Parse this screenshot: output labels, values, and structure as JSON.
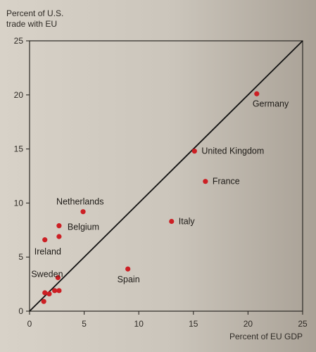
{
  "chart_data": {
    "type": "scatter",
    "title": "",
    "xlabel": "Percent of EU GDP",
    "ylabel": "Percent of U.S. trade with EU",
    "xlim": [
      0,
      25
    ],
    "ylim": [
      0,
      25
    ],
    "xticks": [
      "0",
      "5",
      "10",
      "15",
      "20",
      "25"
    ],
    "yticks": [
      "0",
      "5",
      "10",
      "15",
      "20",
      "25"
    ],
    "grid": false,
    "reference_line": {
      "from": [
        0,
        0
      ],
      "to": [
        25,
        25
      ]
    },
    "point_color": "#cc1f24",
    "line_color": "#111111",
    "points": [
      {
        "label": "Germany",
        "x": 20.8,
        "y": 20.1
      },
      {
        "label": "United Kingdom",
        "x": 15.1,
        "y": 14.8
      },
      {
        "label": "France",
        "x": 16.1,
        "y": 12.0
      },
      {
        "label": "Italy",
        "x": 13.0,
        "y": 8.3
      },
      {
        "label": "Spain",
        "x": 9.0,
        "y": 3.9
      },
      {
        "label": "Netherlands",
        "x": 4.9,
        "y": 9.2
      },
      {
        "label": "Belgium",
        "x": 2.7,
        "y": 7.9
      },
      {
        "label": "",
        "x": 2.7,
        "y": 6.9
      },
      {
        "label": "Ireland",
        "x": 1.4,
        "y": 6.6
      },
      {
        "label": "Sweden",
        "x": 2.6,
        "y": 3.1
      },
      {
        "label": "",
        "x": 2.7,
        "y": 1.9
      },
      {
        "label": "",
        "x": 2.3,
        "y": 1.9
      },
      {
        "label": "",
        "x": 1.8,
        "y": 1.6
      },
      {
        "label": "",
        "x": 1.4,
        "y": 1.7
      },
      {
        "label": "",
        "x": 1.3,
        "y": 0.9
      }
    ]
  }
}
